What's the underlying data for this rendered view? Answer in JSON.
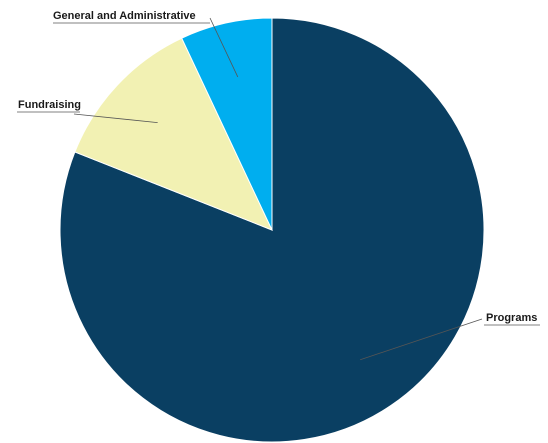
{
  "chart_data": {
    "type": "pie",
    "title": "",
    "slices": [
      {
        "label": "Programs",
        "value": 81,
        "color": "#0a3f62"
      },
      {
        "label": "Fundraising",
        "value": 12,
        "color": "#f2f1b3"
      },
      {
        "label": "General and Administrative",
        "value": 7,
        "color": "#00aeef"
      }
    ],
    "start_angle_deg": 0,
    "direction": "clockwise",
    "legend": "none",
    "labels": "outside with leader lines"
  }
}
